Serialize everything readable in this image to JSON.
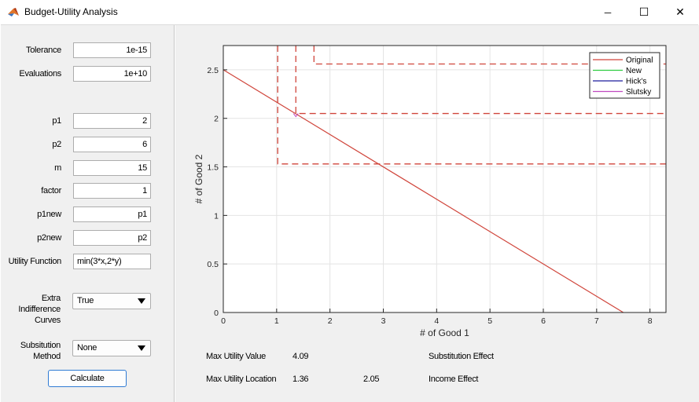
{
  "window": {
    "title": "Budget-Utility Analysis",
    "minimize_glyph": "─",
    "maximize_glyph": "☐",
    "close_glyph": "✕"
  },
  "inputs": {
    "tolerance": {
      "label": "Tolerance",
      "value": "1e-15"
    },
    "evaluations": {
      "label": "Evaluations",
      "value": "1e+10"
    },
    "p1": {
      "label": "p1",
      "value": "2"
    },
    "p2": {
      "label": "p2",
      "value": "6"
    },
    "m": {
      "label": "m",
      "value": "15"
    },
    "factor": {
      "label": "factor",
      "value": "1"
    },
    "p1new": {
      "label": "p1new",
      "value": "p1"
    },
    "p2new": {
      "label": "p2new",
      "value": "p2"
    },
    "utility": {
      "label": "Utility Function",
      "value": "min(3*x,2*y)"
    }
  },
  "extra_curves": {
    "label_lines": [
      "Extra",
      "Indifference",
      "Curves"
    ],
    "selected": "True"
  },
  "substitution": {
    "label_lines": [
      "Subsitution",
      "Method"
    ],
    "selected": "None"
  },
  "calculate_label": "Calculate",
  "results": {
    "max_utility_label": "Max Utility Value",
    "max_utility_value": "4.09",
    "max_location_label": "Max Utility Location",
    "max_location_x": "1.36",
    "max_location_y": "2.05",
    "substitution_label": "Substitution Effect",
    "income_label": "Income Effect"
  },
  "chart_data": {
    "type": "line",
    "xlabel": "# of Good 1",
    "ylabel": "# of Good 2",
    "xlim": [
      0,
      8.3
    ],
    "ylim": [
      0,
      2.75
    ],
    "xticks": [
      0,
      1,
      2,
      3,
      4,
      5,
      6,
      7,
      8
    ],
    "yticks": [
      0,
      0.5,
      1,
      1.5,
      2,
      2.5
    ],
    "ytick_labels": [
      "0",
      "0.5",
      "1",
      "1.5",
      "2",
      "2.5"
    ],
    "grid": true,
    "legend_position": "top-right",
    "legend": [
      {
        "name": "Original",
        "color": "#d0453b"
      },
      {
        "name": "New",
        "color": "#2ecc40"
      },
      {
        "name": "Hick's",
        "color": "#1c1c9c"
      },
      {
        "name": "Slutsky",
        "color": "#c04ac0"
      }
    ],
    "budget_line": {
      "x": [
        0,
        7.5
      ],
      "y": [
        2.5,
        0
      ]
    },
    "indifference_curves": [
      {
        "corner": [
          1.02,
          1.53
        ],
        "style": "dashed",
        "color": "#d0453b"
      },
      {
        "corner": [
          1.36,
          2.05
        ],
        "style": "dashed",
        "color": "#d0453b"
      },
      {
        "corner": [
          1.7,
          2.56
        ],
        "style": "dashed",
        "color": "#d0453b"
      }
    ],
    "optimal_point": {
      "x": 1.36,
      "y": 2.05,
      "color": "#c04ac0"
    }
  }
}
